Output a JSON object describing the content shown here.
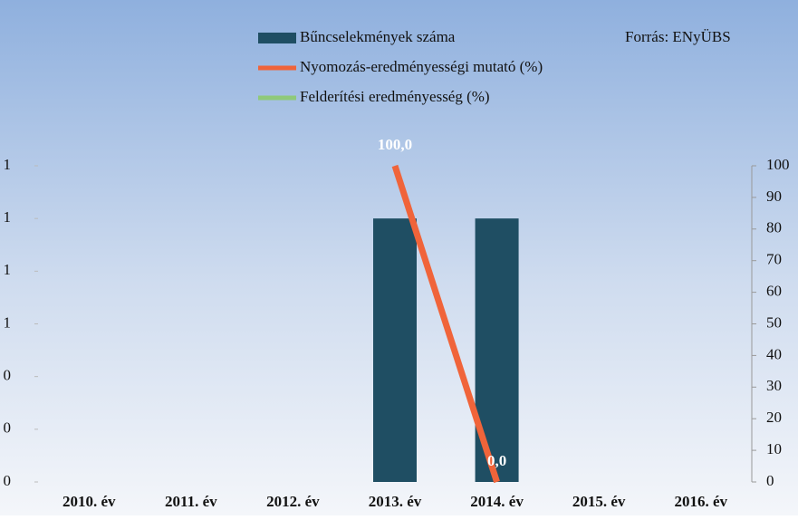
{
  "chart_data": {
    "type": "bar",
    "source": "Forrás: ENyÜBS",
    "categories": [
      "2010. év",
      "2011. év",
      "2012. év",
      "2013. év",
      "2014. év",
      "2015. év",
      "2016. év"
    ],
    "series": [
      {
        "name": "Bűncselekmények száma",
        "color": "#1f4e63",
        "type": "bar",
        "values": [
          0,
          0,
          0,
          1,
          1,
          0,
          0
        ]
      },
      {
        "name": "Nyomozás-eredményességi mutató (%)",
        "color": "#f0643a",
        "type": "line",
        "axis": "y2",
        "values": [
          null,
          null,
          null,
          100,
          0,
          null,
          null
        ],
        "value_labels": [
          null,
          null,
          null,
          "100,0",
          "0,0",
          null,
          null
        ]
      },
      {
        "name": "Felderítési eredményesség (%)",
        "color": "#8fc97a",
        "type": "line",
        "axis": "y2",
        "values": [
          null,
          null,
          null,
          null,
          null,
          null,
          null
        ]
      }
    ],
    "ylim": [
      0,
      1.2
    ],
    "yticks": [
      0,
      {
        "value": 0.2,
        "label": "0"
      },
      {
        "value": 0.4,
        "label": "0"
      },
      {
        "value": 0.6,
        "label": "1"
      },
      {
        "value": 0.8,
        "label": "1"
      },
      1,
      {
        "value": 1.2,
        "label": "1"
      }
    ],
    "y2lim": [
      0,
      100
    ],
    "y2ticks": [
      0,
      10,
      20,
      30,
      40,
      50,
      60,
      70,
      80,
      90,
      100
    ],
    "legend": "top"
  }
}
